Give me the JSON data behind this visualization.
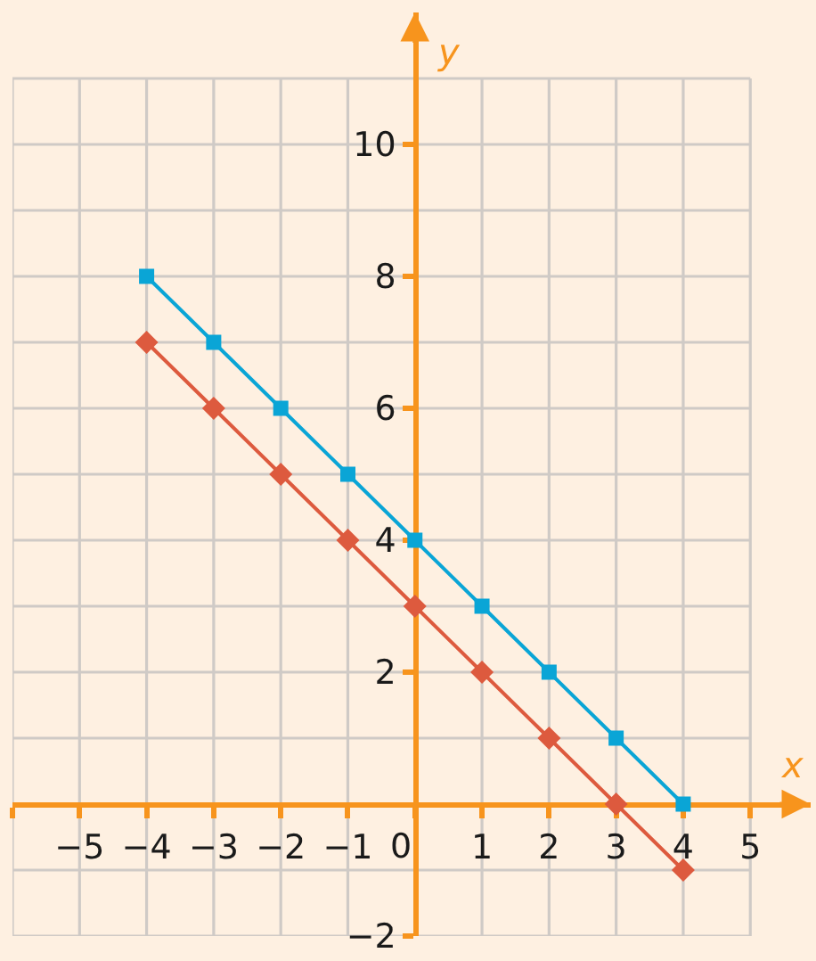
{
  "chart_data": {
    "type": "line",
    "xlabel": "x",
    "ylabel": "y",
    "x": [
      -4,
      -3,
      -2,
      -1,
      0,
      1,
      2,
      3,
      4
    ],
    "series": [
      {
        "color": "#0aa5d6",
        "marker": "square",
        "values": [
          8,
          7,
          6,
          5,
          4,
          3,
          2,
          1,
          0
        ]
      },
      {
        "color": "#dd5a3e",
        "marker": "diamond",
        "values": [
          7,
          6,
          5,
          4,
          3,
          2,
          1,
          0,
          -1
        ]
      }
    ],
    "xlim": [
      -6,
      5.9
    ],
    "ylim": [
      -2,
      12
    ],
    "xticks": [
      {
        "value": -6,
        "label": null
      },
      -5,
      -4,
      -3,
      -2,
      -1,
      0,
      1,
      2,
      3,
      4,
      5
    ],
    "yticks": [
      -2,
      {
        "value": -1,
        "label": null
      },
      {
        "value": 0,
        "label": null
      },
      {
        "value": 1,
        "label": null
      },
      2,
      {
        "value": 3,
        "label": null
      },
      4,
      {
        "value": 5,
        "label": null
      },
      6,
      {
        "value": 7,
        "label": null
      },
      8,
      {
        "value": 9,
        "label": null
      },
      10,
      {
        "value": 11,
        "label": null
      }
    ],
    "grid": true,
    "line_style": "solid"
  }
}
